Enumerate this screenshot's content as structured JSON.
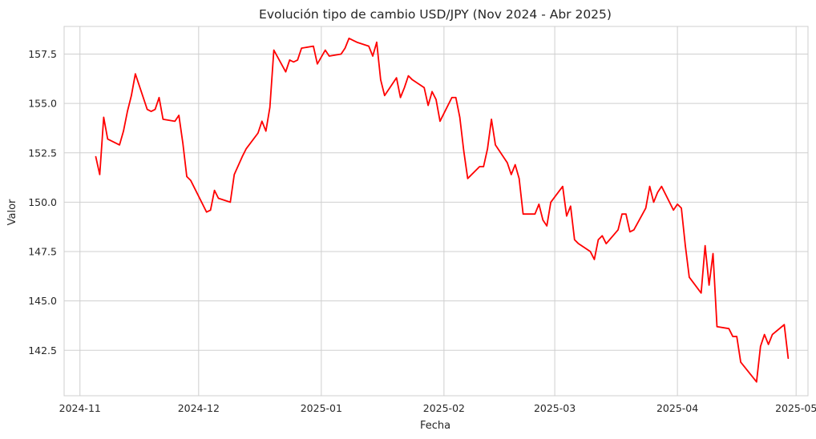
{
  "chart_data": {
    "type": "line",
    "title": "Evolución tipo de cambio USD/JPY (Nov 2024 - Abr 2025)",
    "xlabel": "Fecha",
    "ylabel": "Valor",
    "x_tick_labels": [
      "2024-11",
      "2024-12",
      "2025-01",
      "2025-02",
      "2025-03",
      "2025-04",
      "2025-05"
    ],
    "x_ticks": [
      "2024-11-01",
      "2024-12-01",
      "2025-01-01",
      "2025-02-01",
      "2025-03-01",
      "2025-04-01",
      "2025-05-01"
    ],
    "y_ticks": [
      142.5,
      145.0,
      147.5,
      150.0,
      152.5,
      155.0,
      157.5
    ],
    "y_tick_labels": [
      "142.5",
      "145.0",
      "147.5",
      "150.0",
      "152.5",
      "155.0",
      "157.5"
    ],
    "xlim": [
      "2024-10-28",
      "2025-05-04"
    ],
    "ylim": [
      140.2,
      158.9
    ],
    "grid": true,
    "series": [
      {
        "color": "#ff0000",
        "points": [
          [
            "2024-11-05",
            152.3
          ],
          [
            "2024-11-06",
            151.4
          ],
          [
            "2024-11-07",
            154.3
          ],
          [
            "2024-11-08",
            153.2
          ],
          [
            "2024-11-11",
            152.9
          ],
          [
            "2024-11-12",
            153.6
          ],
          [
            "2024-11-13",
            154.6
          ],
          [
            "2024-11-14",
            155.4
          ],
          [
            "2024-11-15",
            156.5
          ],
          [
            "2024-11-18",
            154.7
          ],
          [
            "2024-11-19",
            154.6
          ],
          [
            "2024-11-20",
            154.7
          ],
          [
            "2024-11-21",
            155.3
          ],
          [
            "2024-11-22",
            154.2
          ],
          [
            "2024-11-25",
            154.1
          ],
          [
            "2024-11-26",
            154.4
          ],
          [
            "2024-11-27",
            153.0
          ],
          [
            "2024-11-28",
            151.3
          ],
          [
            "2024-11-29",
            151.1
          ],
          [
            "2024-12-03",
            149.5
          ],
          [
            "2024-12-04",
            149.6
          ],
          [
            "2024-12-05",
            150.6
          ],
          [
            "2024-12-06",
            150.2
          ],
          [
            "2024-12-09",
            150.0
          ],
          [
            "2024-12-10",
            151.4
          ],
          [
            "2024-12-12",
            152.3
          ],
          [
            "2024-12-13",
            152.7
          ],
          [
            "2024-12-16",
            153.5
          ],
          [
            "2024-12-17",
            154.1
          ],
          [
            "2024-12-18",
            153.6
          ],
          [
            "2024-12-19",
            154.8
          ],
          [
            "2024-12-20",
            157.7
          ],
          [
            "2024-12-23",
            156.6
          ],
          [
            "2024-12-24",
            157.2
          ],
          [
            "2024-12-25",
            157.1
          ],
          [
            "2024-12-26",
            157.2
          ],
          [
            "2024-12-27",
            157.8
          ],
          [
            "2024-12-30",
            157.9
          ],
          [
            "2024-12-31",
            157.0
          ],
          [
            "2025-01-02",
            157.7
          ],
          [
            "2025-01-03",
            157.4
          ],
          [
            "2025-01-06",
            157.5
          ],
          [
            "2025-01-07",
            157.8
          ],
          [
            "2025-01-08",
            158.3
          ],
          [
            "2025-01-09",
            158.2
          ],
          [
            "2025-01-10",
            158.1
          ],
          [
            "2025-01-13",
            157.9
          ],
          [
            "2025-01-14",
            157.4
          ],
          [
            "2025-01-15",
            158.1
          ],
          [
            "2025-01-16",
            156.2
          ],
          [
            "2025-01-17",
            155.4
          ],
          [
            "2025-01-20",
            156.3
          ],
          [
            "2025-01-21",
            155.3
          ],
          [
            "2025-01-22",
            155.8
          ],
          [
            "2025-01-23",
            156.4
          ],
          [
            "2025-01-24",
            156.2
          ],
          [
            "2025-01-27",
            155.8
          ],
          [
            "2025-01-28",
            154.9
          ],
          [
            "2025-01-29",
            155.6
          ],
          [
            "2025-01-30",
            155.2
          ],
          [
            "2025-01-31",
            154.1
          ],
          [
            "2025-02-03",
            155.3
          ],
          [
            "2025-02-04",
            155.3
          ],
          [
            "2025-02-05",
            154.3
          ],
          [
            "2025-02-06",
            152.6
          ],
          [
            "2025-02-07",
            151.2
          ],
          [
            "2025-02-10",
            151.8
          ],
          [
            "2025-02-11",
            151.8
          ],
          [
            "2025-02-12",
            152.7
          ],
          [
            "2025-02-13",
            154.2
          ],
          [
            "2025-02-14",
            152.9
          ],
          [
            "2025-02-17",
            152.0
          ],
          [
            "2025-02-18",
            151.4
          ],
          [
            "2025-02-19",
            151.9
          ],
          [
            "2025-02-20",
            151.2
          ],
          [
            "2025-02-21",
            149.4
          ],
          [
            "2025-02-24",
            149.4
          ],
          [
            "2025-02-25",
            149.9
          ],
          [
            "2025-02-26",
            149.1
          ],
          [
            "2025-02-27",
            148.8
          ],
          [
            "2025-02-28",
            150.0
          ],
          [
            "2025-03-03",
            150.8
          ],
          [
            "2025-03-04",
            149.3
          ],
          [
            "2025-03-05",
            149.8
          ],
          [
            "2025-03-06",
            148.1
          ],
          [
            "2025-03-07",
            147.9
          ],
          [
            "2025-03-10",
            147.5
          ],
          [
            "2025-03-11",
            147.1
          ],
          [
            "2025-03-12",
            148.1
          ],
          [
            "2025-03-13",
            148.3
          ],
          [
            "2025-03-14",
            147.9
          ],
          [
            "2025-03-17",
            148.6
          ],
          [
            "2025-03-18",
            149.4
          ],
          [
            "2025-03-19",
            149.4
          ],
          [
            "2025-03-20",
            148.5
          ],
          [
            "2025-03-21",
            148.6
          ],
          [
            "2025-03-24",
            149.7
          ],
          [
            "2025-03-25",
            150.8
          ],
          [
            "2025-03-26",
            150.0
          ],
          [
            "2025-03-27",
            150.5
          ],
          [
            "2025-03-28",
            150.8
          ],
          [
            "2025-03-31",
            149.6
          ],
          [
            "2025-04-01",
            149.9
          ],
          [
            "2025-04-02",
            149.7
          ],
          [
            "2025-04-03",
            147.8
          ],
          [
            "2025-04-04",
            146.2
          ],
          [
            "2025-04-07",
            145.4
          ],
          [
            "2025-04-08",
            147.8
          ],
          [
            "2025-04-09",
            145.8
          ],
          [
            "2025-04-10",
            147.4
          ],
          [
            "2025-04-11",
            143.7
          ],
          [
            "2025-04-14",
            143.6
          ],
          [
            "2025-04-15",
            143.2
          ],
          [
            "2025-04-16",
            143.2
          ],
          [
            "2025-04-17",
            141.9
          ],
          [
            "2025-04-21",
            140.9
          ],
          [
            "2025-04-22",
            142.7
          ],
          [
            "2025-04-23",
            143.3
          ],
          [
            "2025-04-24",
            142.8
          ],
          [
            "2025-04-25",
            143.3
          ],
          [
            "2025-04-28",
            143.8
          ],
          [
            "2025-04-29",
            142.1
          ]
        ]
      }
    ]
  }
}
